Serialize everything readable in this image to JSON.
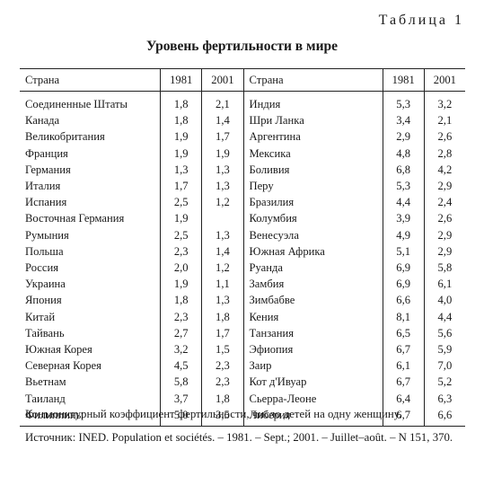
{
  "table_label": "Таблица 1",
  "title": "Уровень фертильности в мире",
  "headers": {
    "country": "Страна",
    "y1981": "1981",
    "y2001": "2001",
    "country2": "Страна",
    "y1981b": "1981",
    "y2001b": "2001"
  },
  "rows": [
    {
      "c1": "Соединенные Штаты",
      "a1": "1,8",
      "b1": "2,1",
      "c2": "Индия",
      "a2": "5,3",
      "b2": "3,2"
    },
    {
      "c1": "Канада",
      "a1": "1,8",
      "b1": "1,4",
      "c2": "Шри Ланка",
      "a2": "3,4",
      "b2": "2,1"
    },
    {
      "c1": "Великобритания",
      "a1": "1,9",
      "b1": "1,7",
      "c2": "Аргентина",
      "a2": "2,9",
      "b2": "2,6"
    },
    {
      "c1": "Франция",
      "a1": "1,9",
      "b1": "1,9",
      "c2": "Мексика",
      "a2": "4,8",
      "b2": "2,8"
    },
    {
      "c1": "Германия",
      "a1": "1,3",
      "b1": "1,3",
      "c2": "Боливия",
      "a2": "6,8",
      "b2": "4,2"
    },
    {
      "c1": "Италия",
      "a1": "1,7",
      "b1": "1,3",
      "c2": "Перу",
      "a2": "5,3",
      "b2": "2,9"
    },
    {
      "c1": "Испания",
      "a1": "2,5",
      "b1": "1,2",
      "c2": "Бразилия",
      "a2": "4,4",
      "b2": "2,4"
    },
    {
      "c1": "Восточная Германия",
      "a1": "1,9",
      "b1": "",
      "c2": "Колумбия",
      "a2": "3,9",
      "b2": "2,6"
    },
    {
      "c1": "Румыния",
      "a1": "2,5",
      "b1": "1,3",
      "c2": "Венесуэла",
      "a2": "4,9",
      "b2": "2,9"
    },
    {
      "c1": "Польша",
      "a1": "2,3",
      "b1": "1,4",
      "c2": "Южная Африка",
      "a2": "5,1",
      "b2": "2,9"
    },
    {
      "c1": "Россия",
      "a1": "2,0",
      "b1": "1,2",
      "c2": "Руанда",
      "a2": "6,9",
      "b2": "5,8"
    },
    {
      "c1": "Украина",
      "a1": "1,9",
      "b1": "1,1",
      "c2": "Замбия",
      "a2": "6,9",
      "b2": "6,1"
    },
    {
      "c1": "Япония",
      "a1": "1,8",
      "b1": "1,3",
      "c2": "Зимбабве",
      "a2": "6,6",
      "b2": "4,0"
    },
    {
      "c1": "Китай",
      "a1": "2,3",
      "b1": "1,8",
      "c2": "Кения",
      "a2": "8,1",
      "b2": "4,4"
    },
    {
      "c1": "Тайвань",
      "a1": "2,7",
      "b1": "1,7",
      "c2": "Танзания",
      "a2": "6,5",
      "b2": "5,6"
    },
    {
      "c1": "Южная Корея",
      "a1": "3,2",
      "b1": "1,5",
      "c2": "Эфиопия",
      "a2": "6,7",
      "b2": "5,9"
    },
    {
      "c1": "Северная Корея",
      "a1": "4,5",
      "b1": "2,3",
      "c2": "Заир",
      "a2": "6,1",
      "b2": "7,0"
    },
    {
      "c1": "Вьетнам",
      "a1": "5,8",
      "b1": "2,3",
      "c2": "Кот д'Ивуар",
      "a2": "6,7",
      "b2": "5,2"
    },
    {
      "c1": "Таиланд",
      "a1": "3,7",
      "b1": "1,8",
      "c2": "Сьерра-Леоне",
      "a2": "6,4",
      "b2": "6,3"
    },
    {
      "c1": "Филиппины",
      "a1": "5,0",
      "b1": "3,5",
      "c2": "Либерия",
      "a2": "6,7",
      "b2": "6,6"
    }
  ],
  "note": "Конъюнктурный коэффициент фертильности, число детей на одну женщину.",
  "source": "Источник: INED. Population et sociétés. – 1981. – Sept.; 2001. – Juillet–août. – N 151, 370."
}
